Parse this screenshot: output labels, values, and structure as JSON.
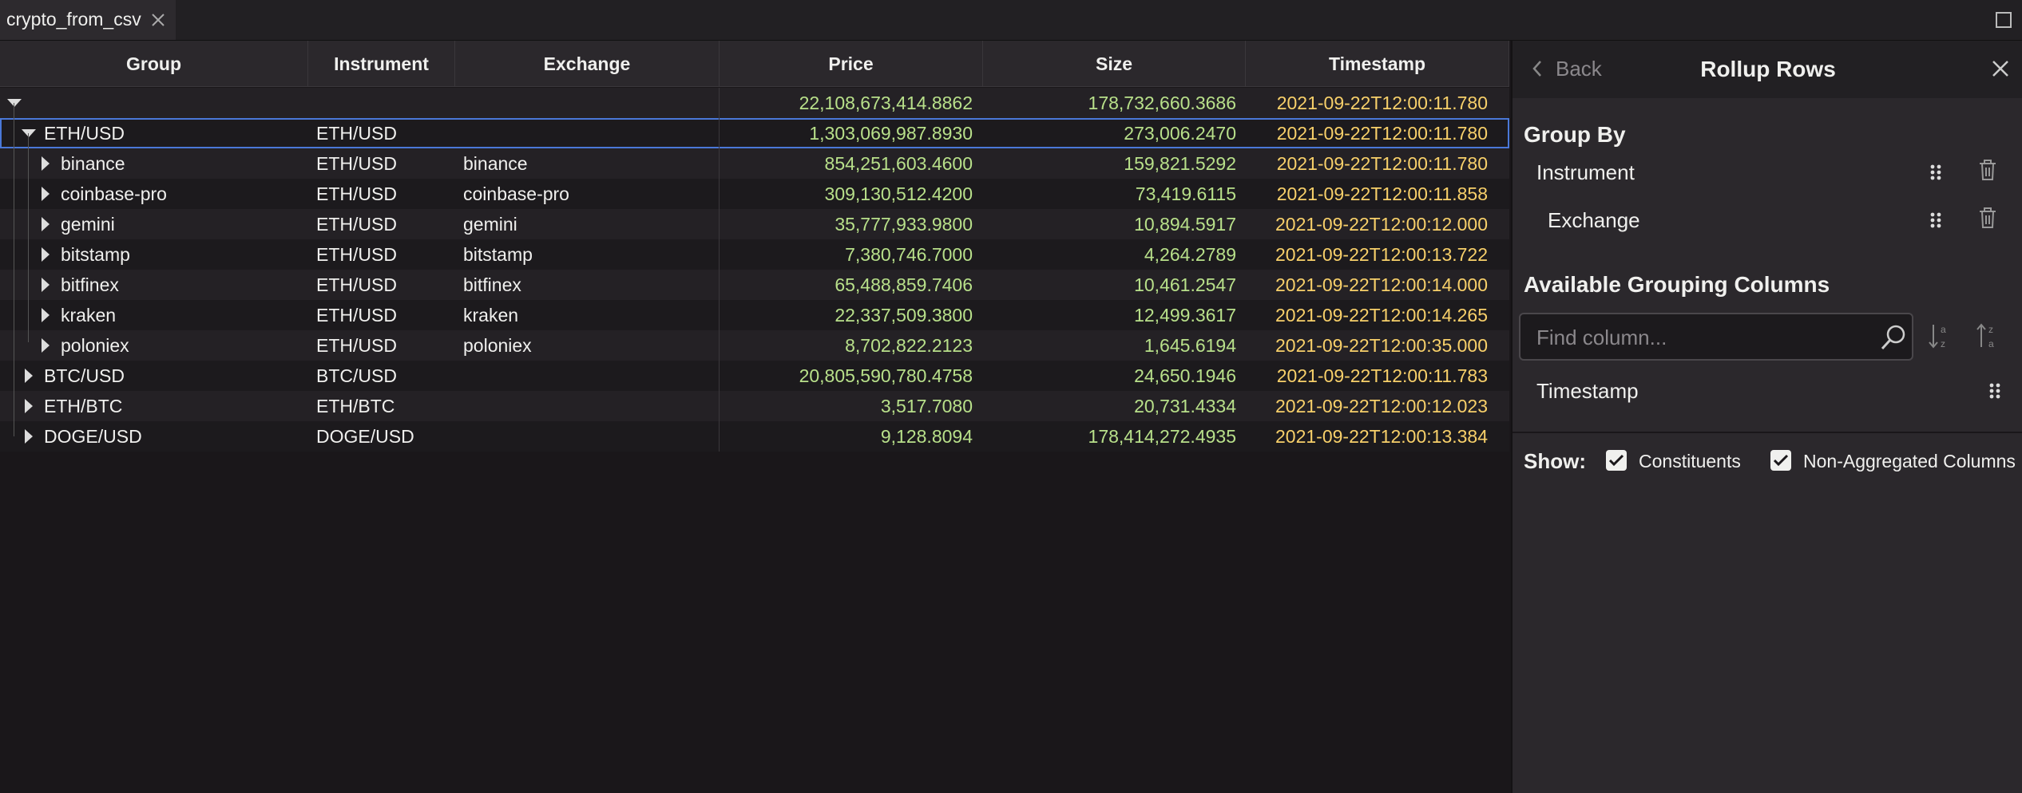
{
  "tab": {
    "title": "crypto_from_csv"
  },
  "grid": {
    "columns": [
      "Group",
      "Instrument",
      "Exchange",
      "Price",
      "Size",
      "Timestamp"
    ],
    "total": {
      "price": "22,108,673,414.8862",
      "size": "178,732,660.3686",
      "timestamp": "2021-09-22T12:00:11.780"
    },
    "groups": [
      {
        "group": "ETH/USD",
        "instrument": "ETH/USD",
        "price": "1,303,069,987.8930",
        "size": "273,006.2470",
        "timestamp": "2021-09-22T12:00:11.780",
        "children": [
          {
            "group": "binance",
            "instrument": "ETH/USD",
            "exchange": "binance",
            "price": "854,251,603.4600",
            "size": "159,821.5292",
            "timestamp": "2021-09-22T12:00:11.780"
          },
          {
            "group": "coinbase-pro",
            "instrument": "ETH/USD",
            "exchange": "coinbase-pro",
            "price": "309,130,512.4200",
            "size": "73,419.6115",
            "timestamp": "2021-09-22T12:00:11.858"
          },
          {
            "group": "gemini",
            "instrument": "ETH/USD",
            "exchange": "gemini",
            "price": "35,777,933.9800",
            "size": "10,894.5917",
            "timestamp": "2021-09-22T12:00:12.000"
          },
          {
            "group": "bitstamp",
            "instrument": "ETH/USD",
            "exchange": "bitstamp",
            "price": "7,380,746.7000",
            "size": "4,264.2789",
            "timestamp": "2021-09-22T12:00:13.722"
          },
          {
            "group": "bitfinex",
            "instrument": "ETH/USD",
            "exchange": "bitfinex",
            "price": "65,488,859.7406",
            "size": "10,461.2547",
            "timestamp": "2021-09-22T12:00:14.000"
          },
          {
            "group": "kraken",
            "instrument": "ETH/USD",
            "exchange": "kraken",
            "price": "22,337,509.3800",
            "size": "12,499.3617",
            "timestamp": "2021-09-22T12:00:14.265"
          },
          {
            "group": "poloniex",
            "instrument": "ETH/USD",
            "exchange": "poloniex",
            "price": "8,702,822.2123",
            "size": "1,645.6194",
            "timestamp": "2021-09-22T12:00:35.000"
          }
        ]
      },
      {
        "group": "BTC/USD",
        "instrument": "BTC/USD",
        "price": "20,805,590,780.4758",
        "size": "24,650.1946",
        "timestamp": "2021-09-22T12:00:11.783"
      },
      {
        "group": "ETH/BTC",
        "instrument": "ETH/BTC",
        "price": "3,517.7080",
        "size": "20,731.4334",
        "timestamp": "2021-09-22T12:00:12.023"
      },
      {
        "group": "DOGE/USD",
        "instrument": "DOGE/USD",
        "price": "9,128.8094",
        "size": "178,414,272.4935",
        "timestamp": "2021-09-22T12:00:13.384"
      }
    ]
  },
  "panel": {
    "back": "Back",
    "title": "Rollup Rows",
    "group_by_label": "Group By",
    "group_by": [
      "Instrument",
      "Exchange"
    ],
    "available_label": "Available Grouping Columns",
    "search_placeholder": "Find column...",
    "available": [
      "Timestamp"
    ],
    "show_label": "Show:",
    "checkboxes": [
      "Constituents",
      "Non-Aggregated Columns"
    ]
  }
}
